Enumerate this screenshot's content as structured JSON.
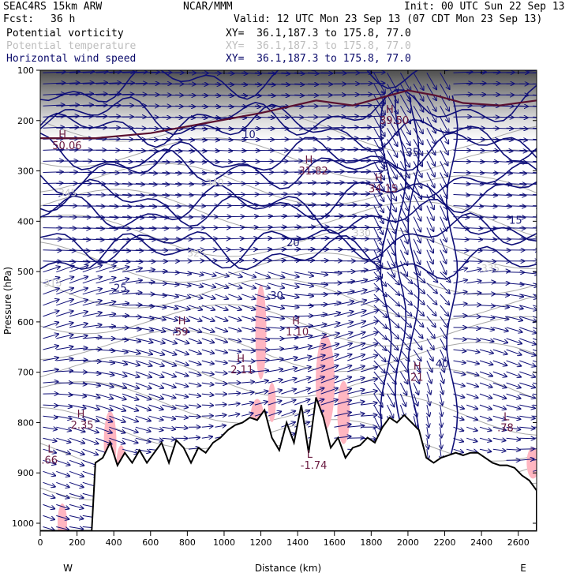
{
  "header": {
    "model": "SEAC4RS 15km ARW",
    "source": "NCAR/MMM",
    "init": "Init: 00 UTC Sun 22 Sep 13",
    "fcst_label": "Fcst:",
    "fcst_value": "36 h",
    "valid": "Valid: 12 UTC Mon 23 Sep 13 (07 CDT Mon 23 Sep 13)"
  },
  "fields": [
    {
      "name": "Potential vorticity",
      "xy": "XY=  36.1,187.3 to 175.8, 77.0",
      "color": "#000000"
    },
    {
      "name": "Potential temperature",
      "xy": "XY=  36.1,187.3 to 175.8, 77.0",
      "color": "#bdbdbd"
    },
    {
      "name": "Horizontal wind speed",
      "xy": "XY=  36.1,187.3 to 175.8, 77.0",
      "color": "#0a0a6a"
    }
  ],
  "colors": {
    "wind_contour": "#0f0f78",
    "theta": "#a8a8a8",
    "pv_high": "#ffb6c1",
    "terrain": "#000000"
  },
  "chart_data": {
    "type": "cross-section",
    "xlabel": "Distance (km)",
    "ylabel": "Pressure (hPa)",
    "xlim": [
      0,
      2700
    ],
    "ylim": [
      1050,
      100
    ],
    "x_ticks": [
      0,
      200,
      400,
      600,
      800,
      1000,
      1200,
      1400,
      1600,
      1800,
      2000,
      2200,
      2400,
      2600
    ],
    "y_ticks": [
      100,
      200,
      300,
      400,
      500,
      600,
      700,
      800,
      900,
      1000
    ],
    "x_end_labels": {
      "left": "W",
      "right": "E"
    },
    "terrain": {
      "x": [
        0,
        280,
        300,
        340,
        380,
        420,
        460,
        500,
        540,
        580,
        620,
        660,
        700,
        740,
        780,
        820,
        860,
        900,
        940,
        980,
        1020,
        1060,
        1100,
        1140,
        1180,
        1220,
        1260,
        1300,
        1340,
        1380,
        1420,
        1460,
        1500,
        1540,
        1580,
        1620,
        1660,
        1700,
        1740,
        1780,
        1820,
        1860,
        1900,
        1940,
        1980,
        2020,
        2060,
        2100,
        2140,
        2180,
        2220,
        2260,
        2300,
        2340,
        2380,
        2420,
        2460,
        2500,
        2540,
        2580,
        2620,
        2660,
        2700
      ],
      "p": [
        1015,
        1015,
        880,
        870,
        840,
        885,
        860,
        880,
        855,
        880,
        860,
        840,
        880,
        835,
        850,
        880,
        850,
        860,
        840,
        830,
        815,
        805,
        800,
        790,
        795,
        775,
        830,
        855,
        800,
        840,
        765,
        860,
        750,
        790,
        850,
        830,
        870,
        850,
        845,
        830,
        840,
        810,
        790,
        800,
        785,
        800,
        815,
        870,
        880,
        870,
        865,
        860,
        865,
        860,
        860,
        870,
        880,
        885,
        885,
        890,
        905,
        915,
        935
      ]
    },
    "wind_contours": [
      "5",
      "10",
      "15",
      "20",
      "25",
      "30",
      "35",
      "40"
    ],
    "theta_labels": [
      "315",
      "325",
      "330",
      "335",
      "340",
      "345"
    ],
    "highs_lows": [
      {
        "type": "H",
        "value": "50.06"
      },
      {
        "type": "H",
        "value": "31.82"
      },
      {
        "type": "H",
        "value": "34.15"
      },
      {
        "type": "H",
        "value": "39.50"
      },
      {
        "type": "H",
        "value": "2.35"
      },
      {
        "type": "H",
        "value": "2.11"
      },
      {
        "type": "H",
        "value": "1.10"
      },
      {
        "type": "H",
        "value": ".59"
      },
      {
        "type": "H",
        "value": ".21"
      },
      {
        "type": "L",
        "value": ".66"
      },
      {
        "type": "L",
        "value": "-1.74"
      },
      {
        "type": "L",
        "value": ".78"
      }
    ]
  }
}
